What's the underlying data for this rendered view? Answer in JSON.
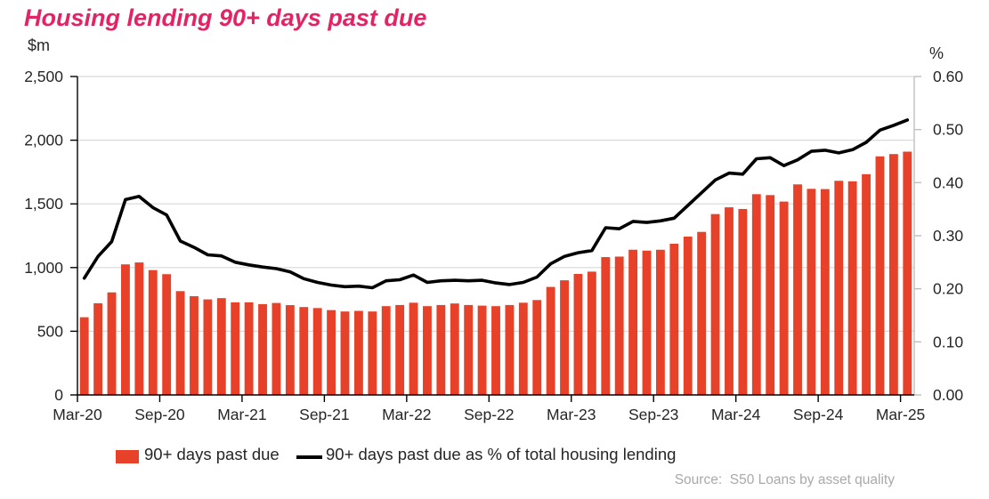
{
  "title": "Housing lending 90+ days past due",
  "left_axis_unit": "$m",
  "right_axis_unit": "%",
  "legend": {
    "items": [
      {
        "label": "90+ days past due",
        "type": "bar",
        "color": "#E8412A"
      },
      {
        "label": "90+ days past due as % of total housing lending",
        "type": "line",
        "color": "#000000"
      }
    ]
  },
  "source": "Source:  S50 Loans by asset quality",
  "colors": {
    "bar": "#E8412A",
    "line": "#000000",
    "title": "#E42365",
    "grid": "#D9D9D9",
    "axis": "#000000",
    "right_axis": "#BFBFBF",
    "text": "#262626",
    "source_text": "#A9A9A9"
  },
  "chart_data": {
    "type": "bar+line combo, dual axis",
    "x": [
      "Mar-20",
      "Apr-20",
      "May-20",
      "Jun-20",
      "Jul-20",
      "Aug-20",
      "Sep-20",
      "Oct-20",
      "Nov-20",
      "Dec-20",
      "Jan-21",
      "Feb-21",
      "Mar-21",
      "Apr-21",
      "May-21",
      "Jun-21",
      "Jul-21",
      "Aug-21",
      "Sep-21",
      "Oct-21",
      "Nov-21",
      "Dec-21",
      "Jan-22",
      "Feb-22",
      "Mar-22",
      "Apr-22",
      "May-22",
      "Jun-22",
      "Jul-22",
      "Aug-22",
      "Sep-22",
      "Oct-22",
      "Nov-22",
      "Dec-22",
      "Jan-23",
      "Feb-23",
      "Mar-23",
      "Apr-23",
      "May-23",
      "Jun-23",
      "Jul-23",
      "Aug-23",
      "Sep-23",
      "Oct-23",
      "Nov-23",
      "Dec-23",
      "Jan-24",
      "Feb-24",
      "Mar-24",
      "Apr-24",
      "May-24",
      "Jun-24",
      "Jul-24",
      "Aug-24",
      "Sep-24",
      "Oct-24",
      "Nov-24",
      "Dec-24",
      "Jan-25",
      "Feb-25",
      "Mar-25"
    ],
    "x_tick_labels": [
      "Mar-20",
      "Sep-20",
      "Mar-21",
      "Sep-21",
      "Mar-22",
      "Sep-22",
      "Mar-23",
      "Sep-23",
      "Mar-24",
      "Sep-24",
      "Mar-25"
    ],
    "x_tick_every": 6,
    "series": [
      {
        "name": "90+ days past due",
        "type": "bar",
        "axis": "left",
        "color": "#E8412A",
        "values": [
          610,
          720,
          805,
          1025,
          1040,
          980,
          948,
          815,
          775,
          750,
          760,
          727,
          727,
          713,
          722,
          705,
          690,
          682,
          666,
          655,
          660,
          655,
          697,
          706,
          724,
          697,
          706,
          718,
          706,
          701,
          697,
          706,
          724,
          745,
          848,
          900,
          950,
          968,
          1082,
          1086,
          1140,
          1133,
          1140,
          1187,
          1243,
          1280,
          1420,
          1473,
          1460,
          1576,
          1569,
          1518,
          1653,
          1618,
          1616,
          1681,
          1677,
          1733,
          1873,
          1891,
          1910
        ]
      },
      {
        "name": "90+ days past due as % of total housing lending",
        "type": "line",
        "axis": "right",
        "color": "#000000",
        "values": [
          0.22,
          0.261,
          0.289,
          0.368,
          0.374,
          0.353,
          0.339,
          0.29,
          0.278,
          0.264,
          0.262,
          0.25,
          0.245,
          0.241,
          0.238,
          0.232,
          0.219,
          0.212,
          0.207,
          0.204,
          0.205,
          0.202,
          0.215,
          0.217,
          0.226,
          0.212,
          0.215,
          0.216,
          0.215,
          0.216,
          0.211,
          0.208,
          0.212,
          0.222,
          0.247,
          0.261,
          0.268,
          0.272,
          0.315,
          0.313,
          0.327,
          0.325,
          0.328,
          0.333,
          0.357,
          0.381,
          0.405,
          0.418,
          0.416,
          0.445,
          0.447,
          0.432,
          0.443,
          0.459,
          0.461,
          0.456,
          0.462,
          0.476,
          0.499,
          0.508,
          0.518
        ]
      }
    ],
    "left_axis": {
      "label": "$m",
      "range": [
        0,
        2500
      ],
      "tick_values": [
        0,
        500,
        1000,
        1500,
        2000,
        2500
      ],
      "tick_labels": [
        "0",
        "500",
        "1,000",
        "1,500",
        "2,000",
        "2,500"
      ]
    },
    "right_axis": {
      "label": "%",
      "range": [
        0,
        0.6
      ],
      "tick_values": [
        0,
        0.1,
        0.2,
        0.3,
        0.4,
        0.5,
        0.6
      ],
      "tick_labels": [
        "0.00",
        "0.10",
        "0.20",
        "0.30",
        "0.40",
        "0.50",
        "0.60"
      ]
    },
    "grid": "horizontal gridlines at left-axis ticks",
    "legend_position": "bottom"
  }
}
